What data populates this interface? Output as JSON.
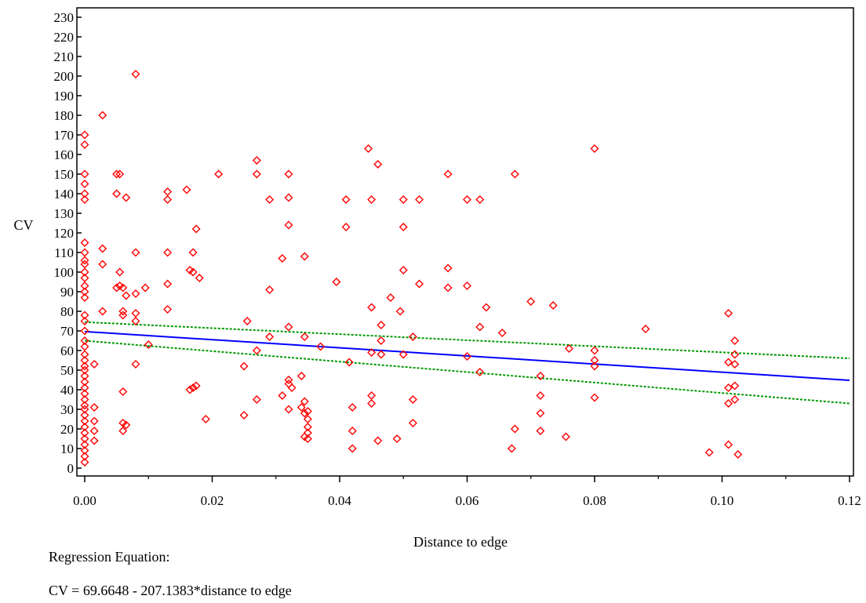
{
  "chart_data": {
    "type": "scatter",
    "xlabel": "Distance to edge",
    "ylabel": "CV",
    "xlim": [
      0,
      0.12
    ],
    "ylim": [
      0,
      230
    ],
    "xticks": [
      0,
      0.02,
      0.04,
      0.06,
      0.08,
      0.1,
      0.12
    ],
    "xtick_labels": [
      "0.00",
      "0.02",
      "0.04",
      "0.06",
      "0.08",
      "0.10",
      "0.12"
    ],
    "yticks": [
      0,
      10,
      20,
      30,
      40,
      50,
      60,
      70,
      80,
      90,
      100,
      110,
      120,
      130,
      140,
      150,
      160,
      170,
      180,
      190,
      200,
      210,
      220,
      230
    ],
    "grid": false,
    "colors": {
      "points": "#ff0000",
      "regression": "#0000ff",
      "confidence": "#009900",
      "axis": "#000000"
    },
    "regression": {
      "intercept": 69.6648,
      "slope": -207.1383,
      "x_range": [
        0,
        0.12
      ]
    },
    "confidence_band": {
      "upper": [
        [
          0,
          74.5
        ],
        [
          0.12,
          56
        ]
      ],
      "lower": [
        [
          0,
          65
        ],
        [
          0.12,
          33
        ]
      ]
    },
    "points": [
      [
        0,
        170
      ],
      [
        0,
        165
      ],
      [
        0,
        150
      ],
      [
        0,
        145
      ],
      [
        0,
        140
      ],
      [
        0,
        137
      ],
      [
        0,
        115
      ],
      [
        0,
        110
      ],
      [
        0,
        106
      ],
      [
        0,
        104
      ],
      [
        0,
        100
      ],
      [
        0,
        97
      ],
      [
        0,
        93
      ],
      [
        0,
        90
      ],
      [
        0,
        87
      ],
      [
        0,
        78
      ],
      [
        0,
        75
      ],
      [
        0,
        70
      ],
      [
        0,
        65
      ],
      [
        0,
        62
      ],
      [
        0,
        58
      ],
      [
        0,
        55
      ],
      [
        0,
        52
      ],
      [
        0,
        50
      ],
      [
        0,
        47
      ],
      [
        0,
        44
      ],
      [
        0,
        41
      ],
      [
        0,
        38
      ],
      [
        0,
        35
      ],
      [
        0,
        32
      ],
      [
        0,
        30
      ],
      [
        0,
        27
      ],
      [
        0,
        24
      ],
      [
        0,
        21
      ],
      [
        0,
        18
      ],
      [
        0,
        15
      ],
      [
        0,
        12
      ],
      [
        0,
        9
      ],
      [
        0,
        6
      ],
      [
        0,
        3
      ],
      [
        0.0015,
        53
      ],
      [
        0.0015,
        31
      ],
      [
        0.0015,
        24
      ],
      [
        0.0015,
        19
      ],
      [
        0.0015,
        14
      ],
      [
        0.0028,
        180
      ],
      [
        0.0028,
        112
      ],
      [
        0.0028,
        104
      ],
      [
        0.0028,
        80
      ],
      [
        0.005,
        150
      ],
      [
        0.005,
        140
      ],
      [
        0.005,
        92
      ],
      [
        0.0055,
        150
      ],
      [
        0.0055,
        100
      ],
      [
        0.0055,
        93
      ],
      [
        0.006,
        92
      ],
      [
        0.006,
        80
      ],
      [
        0.006,
        78
      ],
      [
        0.006,
        39
      ],
      [
        0.006,
        23
      ],
      [
        0.006,
        19
      ],
      [
        0.0065,
        138
      ],
      [
        0.0065,
        88
      ],
      [
        0.0065,
        22
      ],
      [
        0.008,
        201
      ],
      [
        0.008,
        110
      ],
      [
        0.008,
        89
      ],
      [
        0.008,
        79
      ],
      [
        0.008,
        75
      ],
      [
        0.008,
        53
      ],
      [
        0.0095,
        92
      ],
      [
        0.01,
        63
      ],
      [
        0.013,
        141
      ],
      [
        0.013,
        137
      ],
      [
        0.013,
        110
      ],
      [
        0.013,
        94
      ],
      [
        0.013,
        81
      ],
      [
        0.016,
        142
      ],
      [
        0.0165,
        101
      ],
      [
        0.0165,
        40
      ],
      [
        0.017,
        110
      ],
      [
        0.017,
        100
      ],
      [
        0.017,
        41
      ],
      [
        0.0175,
        42
      ],
      [
        0.0175,
        122
      ],
      [
        0.018,
        97
      ],
      [
        0.019,
        25
      ],
      [
        0.021,
        150
      ],
      [
        0.025,
        52
      ],
      [
        0.025,
        27
      ],
      [
        0.0255,
        75
      ],
      [
        0.027,
        157
      ],
      [
        0.027,
        150
      ],
      [
        0.027,
        60
      ],
      [
        0.027,
        35
      ],
      [
        0.029,
        137
      ],
      [
        0.029,
        91
      ],
      [
        0.029,
        67
      ],
      [
        0.031,
        107
      ],
      [
        0.031,
        37
      ],
      [
        0.032,
        150
      ],
      [
        0.032,
        138
      ],
      [
        0.032,
        124
      ],
      [
        0.032,
        72
      ],
      [
        0.032,
        45
      ],
      [
        0.032,
        43
      ],
      [
        0.032,
        30
      ],
      [
        0.0325,
        41
      ],
      [
        0.034,
        31
      ],
      [
        0.034,
        47
      ],
      [
        0.0345,
        108
      ],
      [
        0.0345,
        67
      ],
      [
        0.0345,
        34
      ],
      [
        0.0345,
        28
      ],
      [
        0.0345,
        16
      ],
      [
        0.035,
        29
      ],
      [
        0.035,
        25
      ],
      [
        0.035,
        21
      ],
      [
        0.035,
        18
      ],
      [
        0.035,
        15
      ],
      [
        0.037,
        62
      ],
      [
        0.0395,
        95
      ],
      [
        0.041,
        137
      ],
      [
        0.041,
        123
      ],
      [
        0.0415,
        54
      ],
      [
        0.042,
        31
      ],
      [
        0.042,
        19
      ],
      [
        0.042,
        10
      ],
      [
        0.0445,
        163
      ],
      [
        0.045,
        137
      ],
      [
        0.045,
        82
      ],
      [
        0.045,
        59
      ],
      [
        0.045,
        37
      ],
      [
        0.045,
        33
      ],
      [
        0.046,
        155
      ],
      [
        0.046,
        14
      ],
      [
        0.0465,
        73
      ],
      [
        0.0465,
        65
      ],
      [
        0.0465,
        58
      ],
      [
        0.048,
        87
      ],
      [
        0.049,
        15
      ],
      [
        0.0495,
        80
      ],
      [
        0.05,
        137
      ],
      [
        0.05,
        123
      ],
      [
        0.05,
        101
      ],
      [
        0.05,
        58
      ],
      [
        0.0515,
        67
      ],
      [
        0.0515,
        35
      ],
      [
        0.0515,
        23
      ],
      [
        0.0525,
        137
      ],
      [
        0.0525,
        94
      ],
      [
        0.057,
        150
      ],
      [
        0.057,
        102
      ],
      [
        0.057,
        92
      ],
      [
        0.06,
        137
      ],
      [
        0.06,
        93
      ],
      [
        0.06,
        57
      ],
      [
        0.062,
        137
      ],
      [
        0.062,
        72
      ],
      [
        0.062,
        49
      ],
      [
        0.063,
        82
      ],
      [
        0.0655,
        69
      ],
      [
        0.067,
        10
      ],
      [
        0.0675,
        150
      ],
      [
        0.0675,
        20
      ],
      [
        0.07,
        85
      ],
      [
        0.0715,
        47
      ],
      [
        0.0715,
        37
      ],
      [
        0.0715,
        28
      ],
      [
        0.0715,
        19
      ],
      [
        0.0735,
        83
      ],
      [
        0.0755,
        16
      ],
      [
        0.076,
        61
      ],
      [
        0.08,
        163
      ],
      [
        0.08,
        60
      ],
      [
        0.08,
        55
      ],
      [
        0.08,
        52
      ],
      [
        0.08,
        36
      ],
      [
        0.088,
        71
      ],
      [
        0.098,
        8
      ],
      [
        0.101,
        79
      ],
      [
        0.101,
        54
      ],
      [
        0.101,
        41
      ],
      [
        0.101,
        33
      ],
      [
        0.101,
        12
      ],
      [
        0.102,
        65
      ],
      [
        0.102,
        58
      ],
      [
        0.102,
        53
      ],
      [
        0.102,
        42
      ],
      [
        0.102,
        35
      ],
      [
        0.1025,
        7
      ]
    ]
  },
  "notes": {
    "title": "Regression Equation:",
    "equation": "CV =  69.6648 - 207.1383*distance to edge"
  }
}
